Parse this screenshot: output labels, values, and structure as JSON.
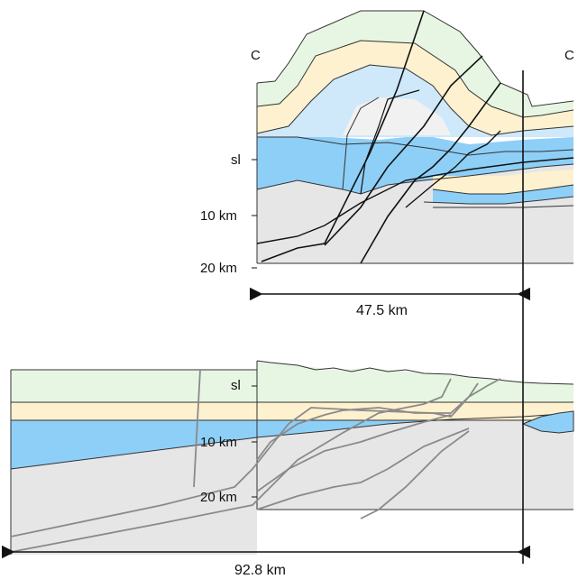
{
  "upper_section": {
    "left_end_label": "C",
    "right_end_label": "C",
    "depth_labels": {
      "sea_level": "sl",
      "depth_10": "10 km",
      "depth_20": "20 km"
    },
    "width_label": "47.5 km"
  },
  "lower_section": {
    "depth_labels": {
      "sea_level": "sl",
      "depth_10": "10 km",
      "depth_20": "20 km"
    },
    "width_label": "92.8 km"
  },
  "colors": {
    "light_green": "#e7f6e2",
    "tan": "#fdf1cf",
    "light_blue": "#cfe8fa",
    "blue": "#8ecff7",
    "gray": "#e6e6e6",
    "very_light": "#f4f4f4",
    "line": "#111111",
    "restored_fault": "#8a8a8a"
  }
}
